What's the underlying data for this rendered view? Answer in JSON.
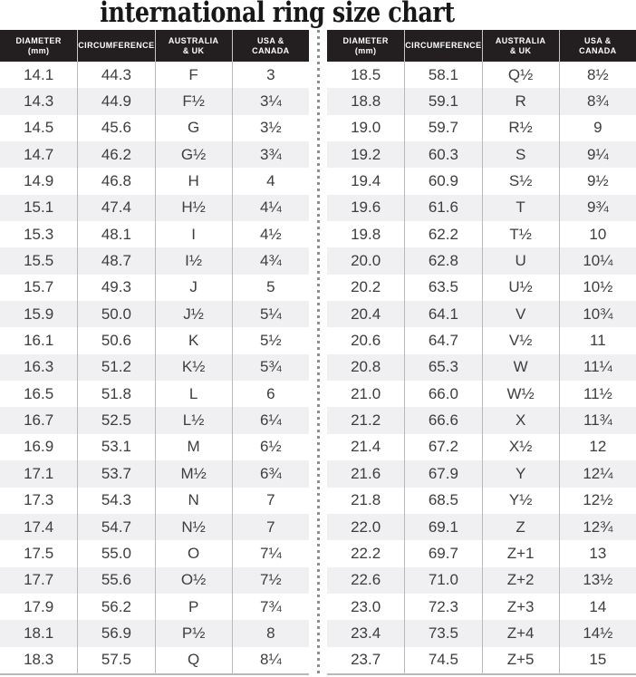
{
  "title": "international ring size chart",
  "colors": {
    "header_bg": "#231f20",
    "header_text": "#ffffff",
    "row_alt_bg": "#f0f0f2",
    "divider": "#b9b9b9",
    "dot": "#8f8f8f",
    "text": "#3d3d3d",
    "title_text": "#181818"
  },
  "chart_data": {
    "type": "table",
    "title": "international ring size chart",
    "layout": "two side-by-side tables separated by a vertical dotted line",
    "headers": [
      {
        "id": "diameter",
        "line1": "DIAMETER",
        "line2": "(mm)"
      },
      {
        "id": "circumference",
        "line1": "CIRCUMFERENCE",
        "line2": ""
      },
      {
        "id": "australia-uk",
        "line1": "AUSTRALIA",
        "line2": "& UK"
      },
      {
        "id": "usa-canada",
        "line1": "USA &",
        "line2": "CANADA"
      }
    ],
    "left_rows": [
      [
        "14.1",
        "44.3",
        "F",
        "3"
      ],
      [
        "14.3",
        "44.9",
        "F½",
        "3¼"
      ],
      [
        "14.5",
        "45.6",
        "G",
        "3½"
      ],
      [
        "14.7",
        "46.2",
        "G½",
        "3¾"
      ],
      [
        "14.9",
        "46.8",
        "H",
        "4"
      ],
      [
        "15.1",
        "47.4",
        "H½",
        "4¼"
      ],
      [
        "15.3",
        "48.1",
        "I",
        "4½"
      ],
      [
        "15.5",
        "48.7",
        "I½",
        "4¾"
      ],
      [
        "15.7",
        "49.3",
        "J",
        "5"
      ],
      [
        "15.9",
        "50.0",
        "J½",
        "5¼"
      ],
      [
        "16.1",
        "50.6",
        "K",
        "5½"
      ],
      [
        "16.3",
        "51.2",
        "K½",
        "5¾"
      ],
      [
        "16.5",
        "51.8",
        "L",
        "6"
      ],
      [
        "16.7",
        "52.5",
        "L½",
        "6¼"
      ],
      [
        "16.9",
        "53.1",
        "M",
        "6½"
      ],
      [
        "17.1",
        "53.7",
        "M½",
        "6¾"
      ],
      [
        "17.3",
        "54.3",
        "N",
        "7"
      ],
      [
        "17.4",
        "54.7",
        "N½",
        "7"
      ],
      [
        "17.5",
        "55.0",
        "O",
        "7¼"
      ],
      [
        "17.7",
        "55.6",
        "O½",
        "7½"
      ],
      [
        "17.9",
        "56.2",
        "P",
        "7¾"
      ],
      [
        "18.1",
        "56.9",
        "P½",
        "8"
      ],
      [
        "18.3",
        "57.5",
        "Q",
        "8¼"
      ]
    ],
    "right_rows": [
      [
        "18.5",
        "58.1",
        "Q½",
        "8½"
      ],
      [
        "18.8",
        "59.1",
        "R",
        "8¾"
      ],
      [
        "19.0",
        "59.7",
        "R½",
        "9"
      ],
      [
        "19.2",
        "60.3",
        "S",
        "9¼"
      ],
      [
        "19.4",
        "60.9",
        "S½",
        "9½"
      ],
      [
        "19.6",
        "61.6",
        "T",
        "9¾"
      ],
      [
        "19.8",
        "62.2",
        "T½",
        "10"
      ],
      [
        "20.0",
        "62.8",
        "U",
        "10¼"
      ],
      [
        "20.2",
        "63.5",
        "U½",
        "10½"
      ],
      [
        "20.4",
        "64.1",
        "V",
        "10¾"
      ],
      [
        "20.6",
        "64.7",
        "V½",
        "11"
      ],
      [
        "20.8",
        "65.3",
        "W",
        "11¼"
      ],
      [
        "21.0",
        "66.0",
        "W½",
        "11½"
      ],
      [
        "21.2",
        "66.6",
        "X",
        "11¾"
      ],
      [
        "21.4",
        "67.2",
        "X½",
        "12"
      ],
      [
        "21.6",
        "67.9",
        "Y",
        "12¼"
      ],
      [
        "21.8",
        "68.5",
        "Y½",
        "12½"
      ],
      [
        "22.0",
        "69.1",
        "Z",
        "12¾"
      ],
      [
        "22.2",
        "69.7",
        "Z+1",
        "13"
      ],
      [
        "22.6",
        "71.0",
        "Z+2",
        "13½"
      ],
      [
        "23.0",
        "72.3",
        "Z+3",
        "14"
      ],
      [
        "23.4",
        "73.5",
        "Z+4",
        "14½"
      ],
      [
        "23.7",
        "74.5",
        "Z+5",
        "15"
      ]
    ]
  }
}
